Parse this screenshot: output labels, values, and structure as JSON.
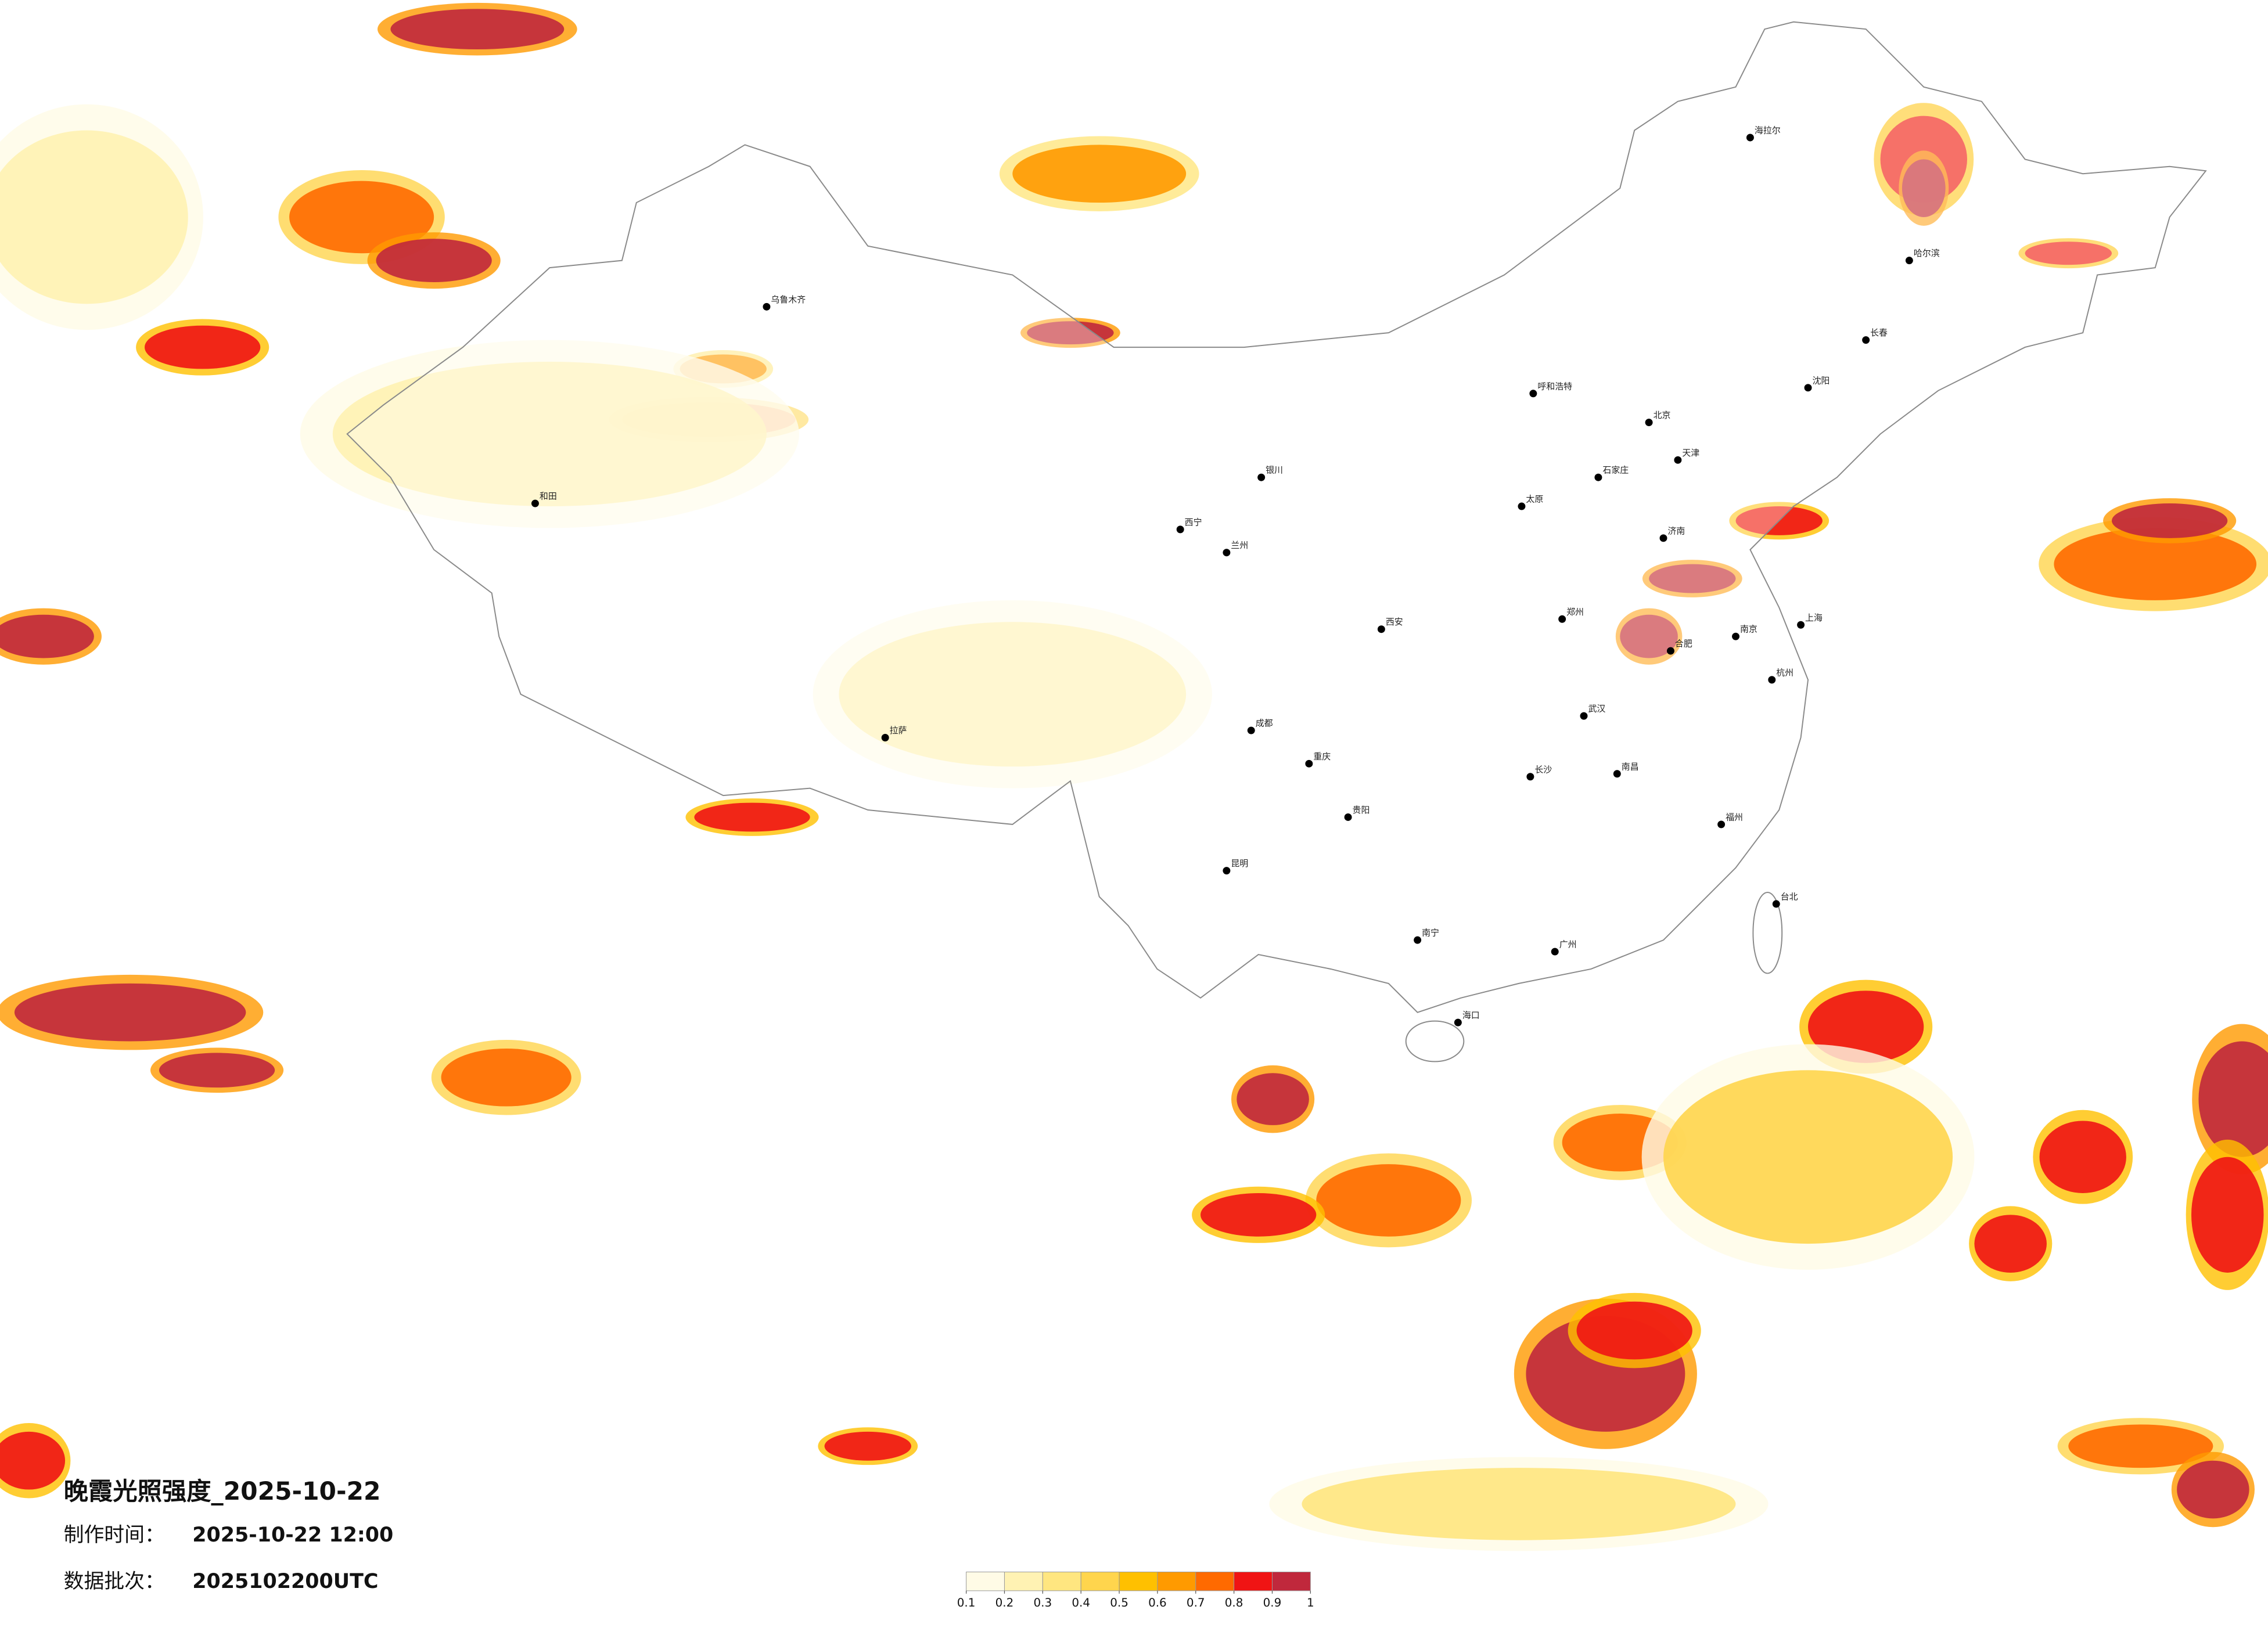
{
  "title": "晚霞光照强度_2025-10-22",
  "info": [
    {
      "label": "制作时间：",
      "value": "2025-10-22 12:00"
    },
    {
      "label": "数据批次：",
      "value": "2025102200UTC"
    }
  ],
  "colorbar": {
    "ticks": [
      0.1,
      0.2,
      0.3,
      0.4,
      0.5,
      0.6,
      0.7,
      0.8,
      0.9,
      1
    ],
    "colors": [
      "#fffbe6",
      "#fff2b3",
      "#ffe680",
      "#ffd54d",
      "#ffc000",
      "#ff9a00",
      "#ff6a00",
      "#f01414",
      "#c0283c"
    ]
  },
  "cities": [
    "北京",
    "天津",
    "石家庄",
    "太原",
    "呼和浩特",
    "沈阳",
    "长春",
    "哈尔滨",
    "济南",
    "郑州",
    "南京",
    "上海",
    "杭州",
    "合肥",
    "武汉",
    "长沙",
    "南昌",
    "福州",
    "广州",
    "南宁",
    "海口",
    "贵阳",
    "昆明",
    "成都",
    "重庆",
    "西安",
    "兰州",
    "西宁",
    "银川",
    "拉萨",
    "乌鲁木齐",
    "台北",
    "和田",
    "海拉尔"
  ]
}
